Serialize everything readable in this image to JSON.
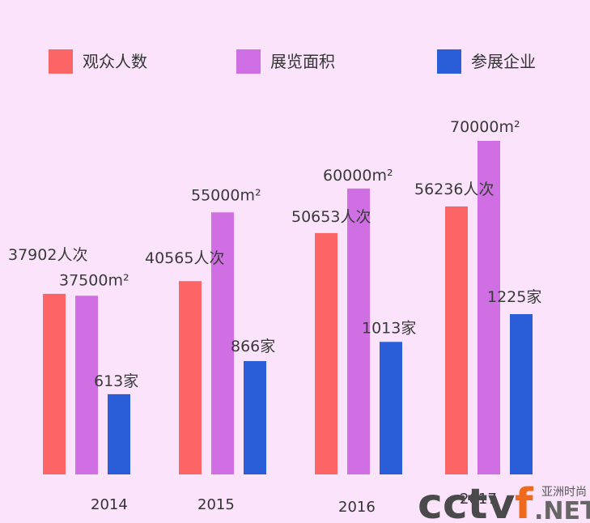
{
  "chart_data": {
    "type": "bar",
    "categories": [
      "2014",
      "2015",
      "2016",
      "2017"
    ],
    "series": [
      {
        "name": "观众人数",
        "color": "#fb6565",
        "values": [
          37902,
          40565,
          50653,
          56236
        ],
        "labels": [
          "37902人次",
          "40565人次",
          "50653人次",
          "56236人次"
        ]
      },
      {
        "name": "展览面积",
        "color": "#d06ee3",
        "values": [
          37500,
          55000,
          60000,
          70000
        ],
        "labels": [
          "37500m²",
          "55000m²",
          "60000m²",
          "70000m²"
        ]
      },
      {
        "name": "参展企业",
        "color": "#2a5ed9",
        "values": [
          613,
          866,
          1013,
          1225
        ],
        "labels": [
          "613家",
          "866家",
          "1013家",
          "1225家"
        ]
      }
    ],
    "legend": "top",
    "grid": false
  },
  "watermark": {
    "brand": "cctv",
    "suffix": "f",
    "domain": ".NET",
    "caption": "亚洲时尚"
  }
}
